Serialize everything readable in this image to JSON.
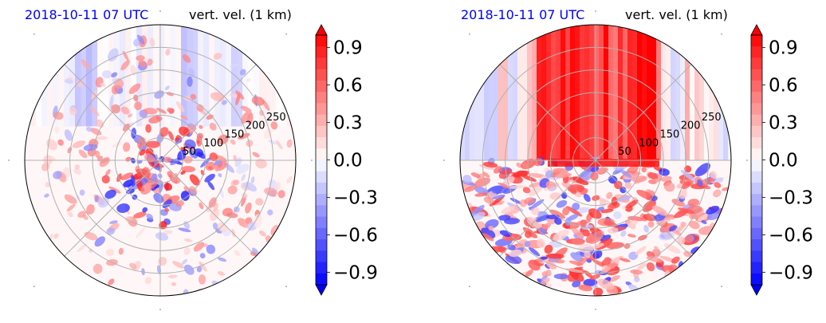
{
  "colors": {
    "negative": "#0000ff",
    "neutral": "#ffffff",
    "positive": "#ff0000",
    "grid": "#b0b0b0",
    "title": "#0000ff"
  },
  "chart_data": [
    {
      "type": "heatmap",
      "projection": "polar",
      "title_left": "2018-10-11 07 UTC",
      "title_right": "vert. vel. (1 km)",
      "colormap": "bwr",
      "vmin": -1.0,
      "vmax": 1.0,
      "extend": "both",
      "colorbar_ticks": [
        "0.9",
        "0.6",
        "0.3",
        "0.0",
        "−0.3",
        "−0.6",
        "−0.9"
      ],
      "colorbar_tick_values": [
        0.9,
        0.6,
        0.3,
        0.0,
        -0.3,
        -0.6,
        -0.9
      ],
      "radial_ticks": [
        "50",
        "100",
        "150",
        "200",
        "250"
      ],
      "radial_tick_values": [
        50,
        100,
        150,
        200,
        250
      ],
      "rmax": 300,
      "grid": true,
      "pattern": "scattered"
    },
    {
      "type": "heatmap",
      "projection": "polar",
      "title_left": "2018-10-11 07 UTC",
      "title_right": "vert. vel. (1 km)",
      "colormap": "bwr",
      "vmin": -1.0,
      "vmax": 1.0,
      "extend": "both",
      "colorbar_ticks": [
        "0.9",
        "0.6",
        "0.3",
        "0.0",
        "−0.3",
        "−0.6",
        "−0.9"
      ],
      "colorbar_tick_values": [
        0.9,
        0.6,
        0.3,
        0.0,
        -0.3,
        -0.6,
        -0.9
      ],
      "radial_ticks": [
        "50",
        "100",
        "150",
        "200",
        "250"
      ],
      "radial_tick_values": [
        50,
        100,
        150,
        200,
        250
      ],
      "rmax": 300,
      "grid": true,
      "pattern": "striped"
    }
  ]
}
